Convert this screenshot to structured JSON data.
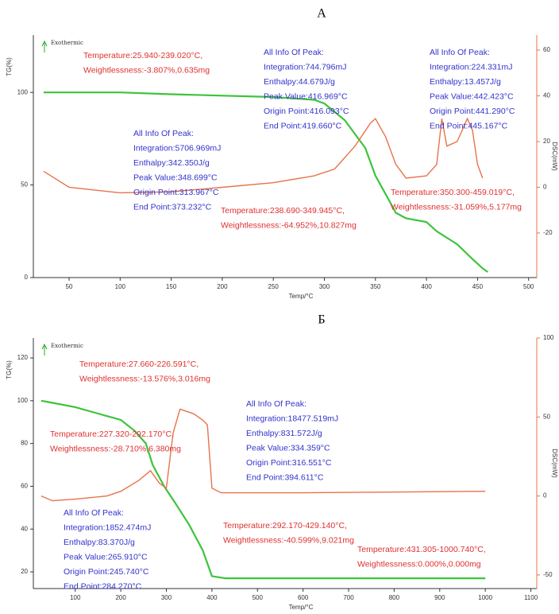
{
  "chart_data": [
    {
      "type": "line",
      "title": "A",
      "xlabel": "Temp/°C",
      "ylabel": "TG(%)",
      "y2label": "DSC(mW)",
      "note": "Exothermic",
      "xlim": [
        15,
        508
      ],
      "xticks": [
        50,
        100,
        150,
        200,
        250,
        300,
        350,
        400,
        450,
        500
      ],
      "ylim": [
        0,
        131
      ],
      "yticks": [
        0,
        50,
        100
      ],
      "y2lim": [
        -39.5,
        66.6
      ],
      "y2ticks": [
        -20,
        0,
        20,
        40,
        60
      ],
      "series": [
        {
          "color": "#3cc43c",
          "x": [
            25,
            100,
            150,
            250,
            290,
            300,
            320,
            340,
            350,
            360,
            370,
            380,
            400,
            410,
            430,
            445,
            455,
            460
          ],
          "values": [
            100,
            100,
            99,
            97.5,
            96,
            94,
            85,
            70,
            55,
            45,
            35,
            32,
            30,
            25,
            18,
            10,
            5,
            3
          ]
        },
        {
          "color": "#e8734a",
          "axis": "y2",
          "x": [
            25,
            50,
            100,
            150,
            200,
            250,
            290,
            310,
            330,
            345,
            350,
            360,
            370,
            380,
            400,
            410,
            415,
            420,
            430,
            440,
            445,
            450,
            455
          ],
          "values": [
            7,
            0,
            -2.4,
            -2,
            0,
            2,
            5,
            8,
            18,
            28,
            30,
            22,
            10,
            4,
            5,
            10,
            30,
            18,
            20,
            30,
            25,
            10,
            4
          ]
        }
      ],
      "annotations": [
        {
          "color": "#e03030",
          "lines": [
            "Temperature:25.940-239.020°C,",
            "Weightlessness:-3.807%,0.635mg"
          ]
        },
        {
          "color": "#3333cc",
          "lines": [
            "All Info Of Peak:",
            "Integration:744.796mJ",
            "Enthalpy:44.679J/g",
            "Peak Value:416.969°C",
            "Origin Point:416.093°C",
            "End Point:419.660°C"
          ]
        },
        {
          "color": "#3333cc",
          "lines": [
            "All Info Of Peak:",
            "Integration:224.331mJ",
            "Enthalpy:13.457J/g",
            "Peak Value:442.423°C",
            "Origin Point:441.290°C",
            "End Point:445.167°C"
          ]
        },
        {
          "color": "#3333cc",
          "lines": [
            "All Info Of Peak:",
            "Integration:5706.969mJ",
            "Enthalpy:342.350J/g",
            "Peak Value:348.699°C",
            "Origin Point:313.967°C",
            "End Point:373.232°C"
          ]
        },
        {
          "color": "#e03030",
          "lines": [
            "Temperature:238.690-349.945°C,",
            "Weightlessness:-64.952%,10.827mg"
          ]
        },
        {
          "color": "#e03030",
          "lines": [
            "Temperature:350.300-459.019°C,",
            "Weightlessness:-31.059%,5.177mg"
          ]
        }
      ]
    },
    {
      "type": "line",
      "title": "Б",
      "xlabel": "Temp/°C",
      "ylabel": "TG(%)",
      "y2label": "DSC(mW)",
      "note": "Exothermic",
      "xlim": [
        8,
        1113
      ],
      "xticks": [
        100,
        200,
        300,
        400,
        500,
        600,
        700,
        800,
        900,
        1000,
        1100
      ],
      "ylim": [
        12.2,
        129.3
      ],
      "yticks": [
        20,
        40,
        60,
        80,
        100,
        120
      ],
      "y2lim": [
        -58.6,
        100
      ],
      "y2ticks": [
        -50,
        0,
        50,
        100
      ],
      "series": [
        {
          "color": "#3cc43c",
          "x": [
            25,
            50,
            100,
            150,
            200,
            230,
            255,
            270,
            295,
            320,
            350,
            380,
            400,
            430,
            1000
          ],
          "values": [
            100,
            99,
            97,
            94,
            91,
            86,
            80,
            70,
            60,
            52,
            42,
            30,
            18,
            17,
            17
          ]
        },
        {
          "color": "#e8734a",
          "axis": "y2",
          "x": [
            25,
            50,
            100,
            170,
            200,
            240,
            265,
            285,
            300,
            315,
            330,
            360,
            380,
            390,
            400,
            420,
            600,
            1000
          ],
          "values": [
            0,
            -3,
            -2,
            0,
            3,
            10,
            16,
            8,
            5,
            40,
            55,
            52,
            48,
            45,
            5,
            2,
            2,
            3
          ]
        }
      ],
      "annotations": [
        {
          "color": "#e03030",
          "lines": [
            "Temperature:27.660-226.591°C,",
            "Weightlessness:-13.576%,3.016mg"
          ]
        },
        {
          "color": "#e03030",
          "lines": [
            "Temperature:227.320-292.170°C,",
            "Weightlessness:-28.710%,6.380mg"
          ]
        },
        {
          "color": "#3333cc",
          "lines": [
            "All Info Of Peak:",
            "Integration:18477.519mJ",
            "Enthalpy:831.572J/g",
            "Peak Value:334.359°C",
            "Origin Point:316.551°C",
            "End Point:394.611°C"
          ]
        },
        {
          "color": "#3333cc",
          "lines": [
            "All Info Of Peak:",
            "Integration:1852.474mJ",
            "Enthalpy:83.370J/g",
            "Peak Value:265.910°C",
            "Origin Point:245.740°C",
            "End Point:284.270°C"
          ]
        },
        {
          "color": "#e03030",
          "lines": [
            "Temperature:292.170-429.140°C,",
            "Weightlessness:-40.599%,9.021mg"
          ]
        },
        {
          "color": "#e03030",
          "lines": [
            "Temperature:431.305-1000.740°C,",
            "Weightlessness:0.000%,0.000mg"
          ]
        }
      ]
    }
  ]
}
